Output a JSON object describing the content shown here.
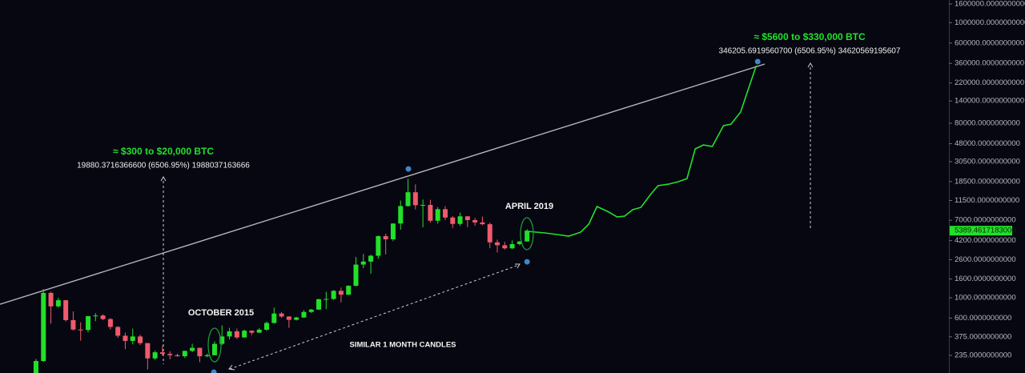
{
  "chart_data": {
    "type": "candlestick",
    "log_scale": true,
    "up_color": "#22e02a",
    "down_color": "#ef5a6c",
    "xlim": [
      -4.84,
      122.7
    ],
    "ylim": [
      151,
      1770000
    ],
    "yticks": [
      {
        "value": 1600000,
        "label": "1600000.0000000000"
      },
      {
        "value": 1000000,
        "label": "1000000.0000000000"
      },
      {
        "value": 600000,
        "label": "600000.0000000000"
      },
      {
        "value": 360000,
        "label": "360000.0000000000"
      },
      {
        "value": 220000,
        "label": "220000.0000000000"
      },
      {
        "value": 140000,
        "label": "140000.0000000000"
      },
      {
        "value": 80000,
        "label": "80000.0000000000"
      },
      {
        "value": 48000,
        "label": "48000.0000000000"
      },
      {
        "value": 30500,
        "label": "30500.0000000000"
      },
      {
        "value": 18500,
        "label": "18500.0000000000"
      },
      {
        "value": 11500,
        "label": "11500.0000000000"
      },
      {
        "value": 7000,
        "label": "7000.0000000000"
      },
      {
        "value": 4200,
        "label": "4200.0000000000"
      },
      {
        "value": 2600,
        "label": "2600.0000000000"
      },
      {
        "value": 1600,
        "label": "1600.0000000000"
      },
      {
        "value": 1000,
        "label": "1000.0000000000"
      },
      {
        "value": 600,
        "label": "600.0000000000"
      },
      {
        "value": 375,
        "label": "375.0000000000"
      },
      {
        "value": 235,
        "label": "235.0000000000"
      }
    ],
    "candles": {
      "x": [
        0,
        1,
        2,
        3,
        4,
        5,
        6,
        7,
        8,
        9,
        10,
        11,
        12,
        13,
        14,
        15,
        16,
        17,
        18,
        19,
        20,
        21,
        22,
        23,
        24,
        25,
        26,
        27,
        28,
        29,
        30,
        31,
        32,
        33,
        34,
        35,
        36,
        37,
        38,
        39,
        40,
        41,
        42,
        43,
        44,
        45,
        46,
        47,
        48,
        49,
        50,
        51,
        52,
        53,
        54,
        55,
        56,
        57,
        58,
        59,
        60,
        61,
        62,
        63,
        64,
        65,
        66
      ],
      "open": [
        132,
        204,
        1129,
        805,
        940,
        570,
        450,
        445,
        630,
        640,
        585,
        480,
        385,
        338,
        378,
        320,
        218,
        254,
        244,
        236,
        230,
        263,
        284,
        230,
        236,
        314,
        378,
        430,
        369,
        437,
        416,
        448,
        531,
        673,
        624,
        574,
        609,
        700,
        742,
        964,
        970,
        1190,
        1080,
        1350,
        2300,
        2480,
        2870,
        4700,
        4340,
        6450,
        10000,
        14150,
        10220,
        10300,
        6920,
        9250,
        7500,
        6390,
        7730,
        7030,
        6630,
        6340,
        4020,
        3740,
        3460,
        3850,
        4110
      ],
      "high": [
        215,
        1242,
        1165,
        1000,
        940,
        710,
        540,
        630,
        680,
        660,
        600,
        490,
        415,
        460,
        395,
        320,
        265,
        300,
        260,
        245,
        265,
        315,
        285,
        245,
        335,
        500,
        470,
        460,
        448,
        440,
        467,
        550,
        780,
        700,
        630,
        620,
        730,
        755,
        975,
        1160,
        1210,
        1290,
        1370,
        2780,
        3000,
        2950,
        4760,
        5000,
        6470,
        11500,
        19890,
        17250,
        11800,
        11700,
        9750,
        9990,
        7760,
        8500,
        7760,
        7410,
        7680,
        6600,
        4300,
        4070,
        4220,
        4150,
        5600
      ],
      "low": [
        120,
        200,
        522,
        780,
        550,
        440,
        340,
        420,
        555,
        570,
        450,
        365,
        275,
        310,
        305,
        165,
        210,
        235,
        213,
        228,
        220,
        255,
        198,
        225,
        235,
        305,
        350,
        355,
        366,
        393,
        413,
        435,
        520,
        605,
        470,
        565,
        605,
        680,
        740,
        750,
        945,
        890,
        1070,
        1340,
        2100,
        1830,
        2670,
        2970,
        4140,
        5520,
        9900,
        9200,
        5870,
        6600,
        6430,
        7030,
        5770,
        6080,
        5880,
        6100,
        6200,
        3470,
        3120,
        3350,
        3390,
        3730,
        4090
      ],
      "close": [
        204,
        1129,
        805,
        940,
        570,
        450,
        445,
        630,
        640,
        585,
        480,
        385,
        338,
        378,
        320,
        218,
        254,
        244,
        236,
        230,
        263,
        284,
        230,
        236,
        314,
        378,
        430,
        369,
        437,
        416,
        448,
        531,
        673,
        624,
        574,
        609,
        700,
        742,
        964,
        970,
        1190,
        1080,
        1350,
        2300,
        2480,
        2870,
        4700,
        4340,
        6450,
        10000,
        14150,
        10220,
        10300,
        6920,
        9250,
        7500,
        6390,
        7730,
        7030,
        6630,
        6340,
        4020,
        3740,
        3460,
        3850,
        4110,
        5390
      ]
    },
    "forecast": {
      "color": "#22e02a",
      "x": [
        66,
        68.4,
        70,
        71.6,
        73.2,
        74.3,
        75.4,
        77,
        78.1,
        79.1,
        80.2,
        81.3,
        82.6,
        83.6,
        85,
        86.3,
        87.5,
        88.6,
        89.7,
        90.9,
        92.4,
        93.4,
        94.7,
        96.8
      ],
      "values": [
        5300,
        5090,
        4890,
        4700,
        5190,
        6350,
        9890,
        8590,
        7600,
        7760,
        9120,
        9680,
        13370,
        16670,
        17340,
        18400,
        19950,
        42070,
        46450,
        44670,
        75340,
        78340,
        105900,
        340400
      ]
    },
    "trendline": {
      "color": "#b4b4bc",
      "x": [
        -4.84,
        97.95
      ],
      "values": [
        849,
        354000
      ]
    },
    "markers": {
      "color": "#3f86c8",
      "x": [
        23.9,
        50.05,
        66,
        97
      ],
      "values": [
        154,
        25400,
        2466,
        376700
      ]
    },
    "last_price": {
      "value": 5389.4617183,
      "label": "5389.4617183000"
    },
    "annotations": {
      "first_move": "≈ $300 to $20,000 BTC",
      "first_measure": "19880.3716366600 (6506.95%) 1988037163666",
      "second_move": "≈ $5600 to $330,000 BTC",
      "second_measure": "346205.6919560700 (6506.95%) 34620569195607",
      "april": "APRIL 2019",
      "october": "OCTOBER 2015",
      "similar": "SIMILAR 1 MONTH CANDLES"
    }
  }
}
